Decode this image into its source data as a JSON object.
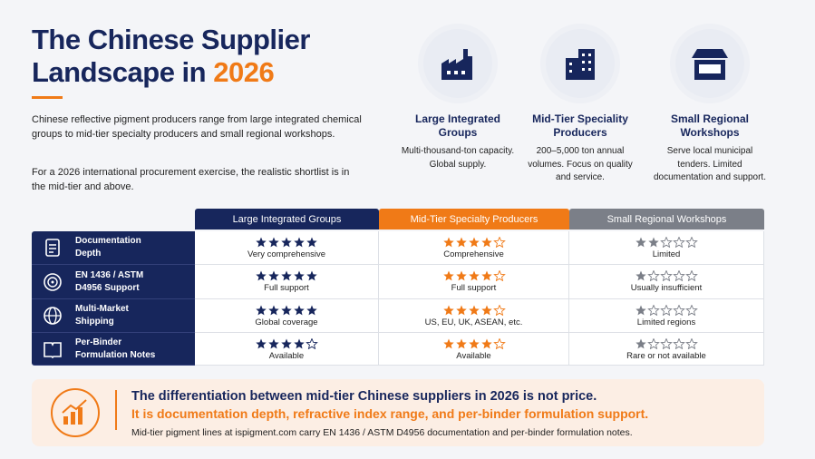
{
  "header": {
    "title_line1": "The Chinese Supplier",
    "title_line2": "Landscape in ",
    "title_year": "2026"
  },
  "intro": [
    "Chinese reflective pigment producers range from large integrated chemical groups to mid-tier specialty producers and small regional workshops.",
    "For a 2026 international procurement exercise, the realistic shortlist is in the mid-tier and above."
  ],
  "tiers": [
    {
      "label": "Large Integrated Groups",
      "desc": "Multi-thousand-ton capacity. Global supply."
    },
    {
      "label": "Mid-Tier Speciality Producers",
      "desc": "200–5,000 ton annual volumes. Focus on quality and service."
    },
    {
      "label": "Small Regional Workshops",
      "desc": "Serve local municipal tenders. Limited documentation and support."
    }
  ],
  "table": {
    "stars_max": 5,
    "columns": [
      "Large Integrated Groups",
      "Mid-Tier Specialty Producers",
      "Small Regional Workshops"
    ],
    "rows": [
      {
        "label": "Documentation Depth",
        "cells": [
          {
            "rating": 5,
            "text": "Very comprehensive"
          },
          {
            "rating": 4,
            "text": "Comprehensive"
          },
          {
            "rating": 2,
            "text": "Limited"
          }
        ]
      },
      {
        "label": "EN 1436 / ASTM D4956 Support",
        "cells": [
          {
            "rating": 5,
            "text": "Full support"
          },
          {
            "rating": 4,
            "text": "Full support"
          },
          {
            "rating": 1,
            "text": "Usually insufficient"
          }
        ]
      },
      {
        "label": "Multi-Market Shipping",
        "cells": [
          {
            "rating": 5,
            "text": "Global coverage"
          },
          {
            "rating": 4,
            "text": "US, EU, UK, ASEAN, etc."
          },
          {
            "rating": 1,
            "text": "Limited regions"
          }
        ]
      },
      {
        "label": "Per-Binder Formulation Notes",
        "cells": [
          {
            "rating": 4,
            "text": "Available"
          },
          {
            "rating": 4,
            "text": "Available"
          },
          {
            "rating": 1,
            "text": "Rare or not available"
          }
        ]
      }
    ]
  },
  "callout": {
    "line1": "The differentiation between mid-tier Chinese suppliers in 2026 is not price.",
    "line2": "It is documentation depth, refractive index range, and per-binder formulation support.",
    "note": "Mid-tier pigment lines at ispigment.com carry EN 1436 / ASTM D4956 documentation and per-binder formulation notes."
  }
}
